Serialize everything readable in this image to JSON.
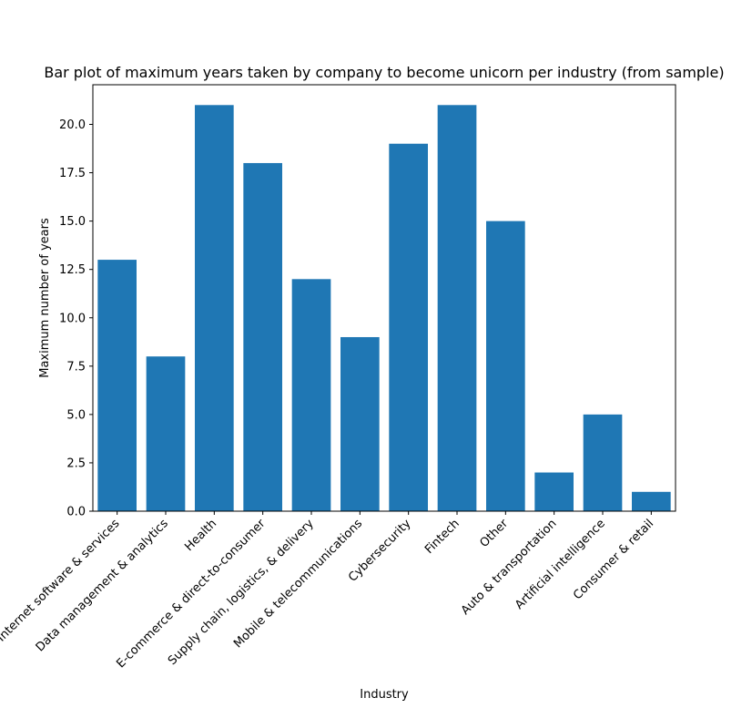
{
  "chart_data": {
    "type": "bar",
    "title": "Bar plot of maximum years taken by company to become unicorn per industry (from sample)",
    "xlabel": "Industry",
    "ylabel": "Maximum number of years",
    "categories": [
      "Internet software & services",
      "Data management & analytics",
      "Health",
      "E-commerce & direct-to-consumer",
      "Supply chain, logistics, & delivery",
      "Mobile & telecommunications",
      "Cybersecurity",
      "Fintech",
      "Other",
      "Auto & transportation",
      "Artificial intelligence",
      "Consumer & retail"
    ],
    "values": [
      13,
      8,
      21,
      18,
      12,
      9,
      19,
      21,
      15,
      2,
      5,
      1
    ],
    "ylim": [
      0,
      22.05
    ],
    "yticks": [
      "0.0",
      "2.5",
      "5.0",
      "7.5",
      "10.0",
      "12.5",
      "15.0",
      "17.5",
      "20.0"
    ],
    "bar_color": "#1f77b4",
    "grid": false
  }
}
